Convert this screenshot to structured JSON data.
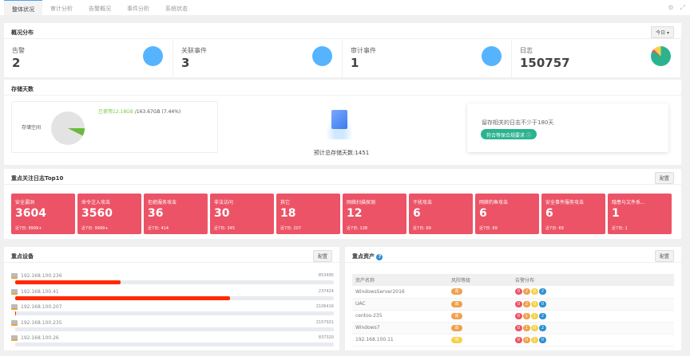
{
  "tabs": [
    "整体状况",
    "审计分析",
    "告警概况",
    "事件分析",
    "系统状态"
  ],
  "toolbar": {
    "settings_icon": "gear-icon",
    "expand_icon": "expand-icon"
  },
  "overview": {
    "title": "概况分布",
    "period": "今日 ▾",
    "stats": [
      {
        "label": "告警",
        "value": "2"
      },
      {
        "label": "关联事件",
        "value": "3"
      },
      {
        "label": "审计事件",
        "value": "1"
      },
      {
        "label": "日志",
        "value": "150757"
      }
    ]
  },
  "storage": {
    "title": "存储天数",
    "space_label": "存储空间",
    "used": "已使用12.18GB",
    "total": " /163.67GB (7.44%)",
    "used_percent": 7.44,
    "estimate": "预计总存储天数:1451",
    "retention": "留存相关的日志不少于180天",
    "compliance": "符合等保合规要求"
  },
  "top10": {
    "title": "重点关注日志Top10",
    "config": "配置",
    "recent_label": "近7日:",
    "items": [
      {
        "name": "安全漏洞",
        "value": "3604",
        "recent": "9999+"
      },
      {
        "name": "命令注入攻击",
        "value": "3560",
        "recent": "9999+"
      },
      {
        "name": "拒绝服务攻击",
        "value": "36",
        "recent": "414"
      },
      {
        "name": "非法访问",
        "value": "30",
        "recent": "345"
      },
      {
        "name": "其它",
        "value": "18",
        "recent": "207"
      },
      {
        "name": "网络扫描探测",
        "value": "12",
        "recent": "138"
      },
      {
        "name": "干扰攻击",
        "value": "6",
        "recent": "69"
      },
      {
        "name": "网络钓鱼攻击",
        "value": "6",
        "recent": "69"
      },
      {
        "name": "安全事件服务攻击",
        "value": "6",
        "recent": "69"
      },
      {
        "name": "隐患与文件系...",
        "value": "1",
        "recent": "1"
      }
    ]
  },
  "devices": {
    "title": "重点设备",
    "config": "配置",
    "items": [
      {
        "ip": "192.168.100.236",
        "count": "853495",
        "fill_percent": 33
      },
      {
        "ip": "192.168.100.41",
        "count": "237424",
        "fill_percent": 67.5
      },
      {
        "ip": "192.168.100.207",
        "count": "2106416",
        "fill_percent": 0.3
      },
      {
        "ip": "192.168.100.235",
        "count": "2157921",
        "fill_percent": 0
      },
      {
        "ip": "192.168.100.26",
        "count": "837320",
        "fill_percent": 0
      }
    ]
  },
  "assets": {
    "title": "重点资产",
    "config": "配置",
    "headers": [
      "资产名称",
      "风险等级",
      "告警分布"
    ],
    "rows": [
      {
        "name": "WindowsServer2016",
        "risk": "高",
        "alerts": [
          "0",
          "2",
          "0",
          "2"
        ]
      },
      {
        "name": "UAC",
        "risk": "高",
        "alerts": [
          "0",
          "2",
          "0",
          "0"
        ]
      },
      {
        "name": "centos-235",
        "risk": "高",
        "alerts": [
          "0",
          "1",
          "1",
          "2"
        ]
      },
      {
        "name": "Windows7",
        "risk": "高",
        "alerts": [
          "0",
          "1",
          "0",
          "2"
        ]
      },
      {
        "name": "192.168.100.11",
        "risk": "中",
        "alerts": [
          "0",
          "0",
          "1",
          "0"
        ]
      }
    ]
  },
  "colors": {
    "alert_card": "#ec5366",
    "high": "#f0a04b",
    "medium": "#f5d24a",
    "badges": [
      "#ec5366",
      "#f0a04b",
      "#f5d24a",
      "#2b8fd6"
    ],
    "compliance": "#2bb38f"
  }
}
